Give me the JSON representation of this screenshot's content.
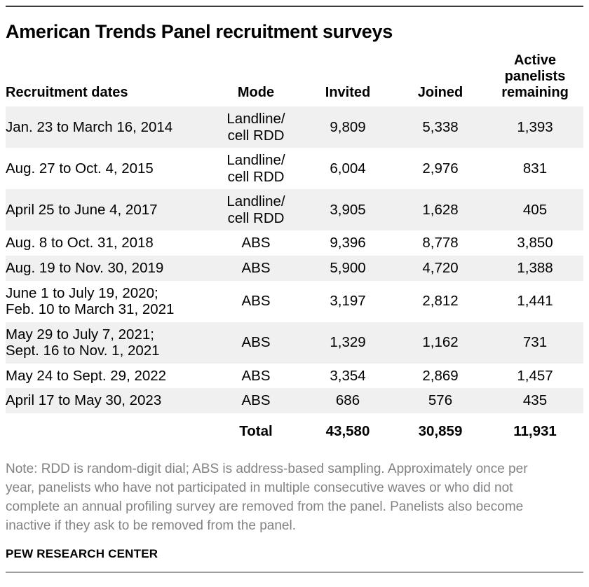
{
  "chart_data": {
    "type": "table",
    "title": "American Trends Panel recruitment surveys",
    "columns": [
      "Recruitment dates",
      "Mode",
      "Invited",
      "Joined",
      "Active\npanelists\nremaining"
    ],
    "rows": [
      [
        "Jan. 23 to March 16, 2014",
        "Landline/\ncell RDD",
        "9,809",
        "5,338",
        "1,393"
      ],
      [
        "Aug. 27 to Oct. 4, 2015",
        "Landline/\ncell RDD",
        "6,004",
        "2,976",
        "831"
      ],
      [
        "April 25 to June 4, 2017",
        "Landline/\ncell RDD",
        "3,905",
        "1,628",
        "405"
      ],
      [
        "Aug. 8 to Oct. 31, 2018",
        "ABS",
        "9,396",
        "8,778",
        "3,850"
      ],
      [
        "Aug. 19 to Nov. 30, 2019",
        "ABS",
        "5,900",
        "4,720",
        "1,388"
      ],
      [
        "June 1 to July 19, 2020;\nFeb. 10 to March 31, 2021",
        "ABS",
        "3,197",
        "2,812",
        "1,441"
      ],
      [
        "May 29 to July 7, 2021;\nSept. 16 to Nov. 1, 2021",
        "ABS",
        "1,329",
        "1,162",
        "731"
      ],
      [
        "May 24 to Sept. 29, 2022",
        "ABS",
        "3,354",
        "2,869",
        "1,457"
      ],
      [
        "April 17 to May 30, 2023",
        "ABS",
        "686",
        "576",
        "435"
      ]
    ],
    "total_row": [
      "",
      "Total",
      "43,580",
      "30,859",
      "11,931"
    ],
    "note": "Note: RDD is random-digit dial; ABS is address-based sampling. Approximately once per year, panelists who have not participated in multiple consecutive waves or who did not complete an annual profiling survey are removed from the panel. Panelists also become inactive if they ask to be removed from the panel.",
    "source": "PEW RESEARCH CENTER"
  },
  "colors": {
    "row_shading": "#f0f0f0",
    "top_rule": "#3d3d3d",
    "bottom_rule": "#9d9d9d",
    "note_text": "#808285",
    "body_text": "#000000"
  }
}
